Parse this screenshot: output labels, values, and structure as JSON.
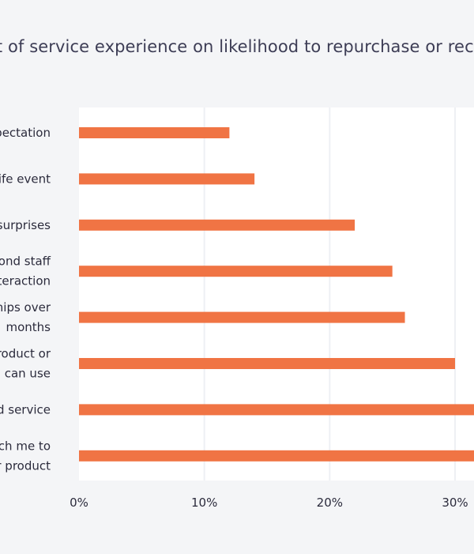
{
  "chart_data": {
    "type": "bar",
    "orientation": "horizontal",
    "title": "Impact of service experience on likelihood to repurchase or recommend",
    "categories": [
      [
        "Exceeded my expectation"
      ],
      [
        "Helped me through a life event"
      ],
      [
        "Delighted me with surprises"
      ],
      [
        "Personalized my second staff",
        "interaction"
      ],
      [
        "Built relationships over",
        "months"
      ],
      [
        "Recommended a product or",
        "service I can use"
      ],
      [
        "Provided good service"
      ],
      [
        "Proactively reach me to",
        "help use their product"
      ]
    ],
    "values": [
      12,
      14,
      22,
      25,
      26,
      30,
      33,
      34
    ],
    "xlim": [
      0,
      35
    ],
    "xticks": [
      "0%",
      "10%",
      "20%",
      "30%"
    ],
    "xtick_values": [
      0,
      10,
      20,
      30
    ],
    "grid": true,
    "colors": {
      "bar": "#f07444",
      "background": "#f4f5f7",
      "plot_background": "#ffffff",
      "grid": "#eef0f4",
      "title": "#3d3d55",
      "text": "#2b2b3c"
    }
  }
}
